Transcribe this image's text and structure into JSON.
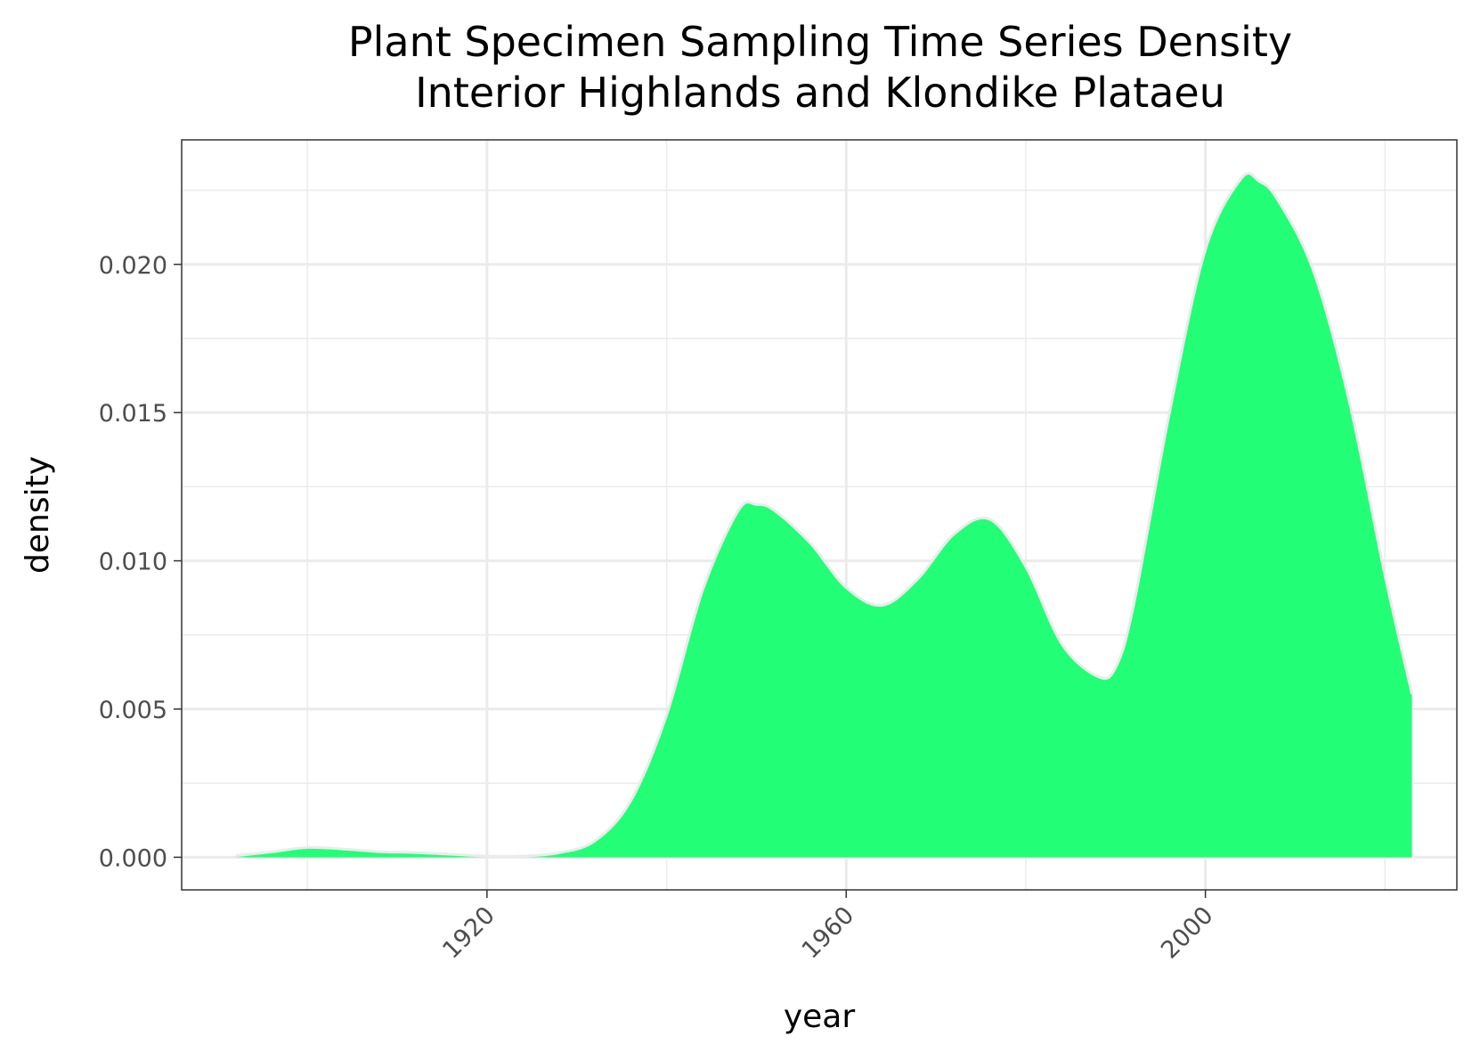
{
  "chart_data": {
    "type": "area",
    "title": "Plant Specimen Sampling Time Series Density",
    "subtitle": "Interior Highlands and Klondike Plataeu",
    "xlabel": "year",
    "ylabel": "density",
    "xlim": [
      1886,
      2028
    ],
    "ylim": [
      -0.0011,
      0.0242
    ],
    "x_ticks": [
      1920,
      1960,
      2000
    ],
    "x_minor_ticks": [
      1900,
      1940,
      1980,
      2020
    ],
    "y_ticks": [
      0.0,
      0.005,
      0.01,
      0.015,
      0.02
    ],
    "y_tick_labels": [
      "0.000",
      "0.005",
      "0.010",
      "0.015",
      "0.020"
    ],
    "y_minor_ticks": [
      0.0025,
      0.0075,
      0.0125,
      0.0175,
      0.0225
    ],
    "x_tick_rotation": 45,
    "grid": true,
    "legend": "none",
    "colors": {
      "fill": "#22FF77",
      "outline": "#EBEBEB",
      "panel_border": "#333333",
      "grid": "#EBEBEB"
    },
    "series": [
      {
        "x": [
          1892,
          1896,
          1900,
          1904,
          1908,
          1912,
          1916,
          1920,
          1924,
          1928,
          1932,
          1936,
          1940,
          1944,
          1948,
          1950,
          1952,
          1956,
          1960,
          1964,
          1968,
          1972,
          1976,
          1980,
          1984,
          1988,
          1990,
          1992,
          1996,
          2000,
          2004,
          2006,
          2008,
          2012,
          2016,
          2020,
          2023
        ],
        "y": [
          5e-05,
          0.00018,
          0.00033,
          0.00028,
          0.00019,
          0.00016,
          0.0001,
          4e-05,
          4e-05,
          0.00015,
          0.00055,
          0.0019,
          0.0048,
          0.009,
          0.0117,
          0.0119,
          0.0117,
          0.0106,
          0.0091,
          0.0085,
          0.0094,
          0.0109,
          0.0114,
          0.0098,
          0.0072,
          0.0061,
          0.0064,
          0.0085,
          0.015,
          0.0205,
          0.0229,
          0.0228,
          0.0222,
          0.0198,
          0.0154,
          0.0095,
          0.0055
        ]
      }
    ]
  }
}
